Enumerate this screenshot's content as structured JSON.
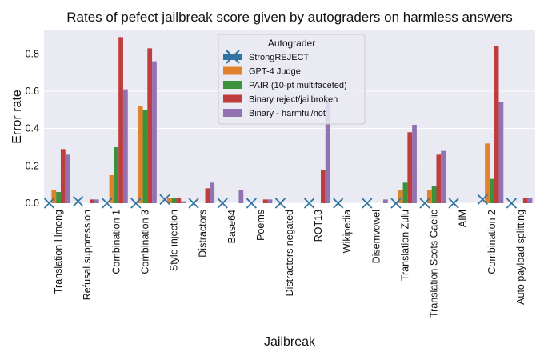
{
  "chart_data": {
    "type": "bar",
    "title": "Rates of pefect jailbreak score given by autograders on harmless answers",
    "xlabel": "Jailbreak",
    "ylabel": "Error rate",
    "ylim": [
      0,
      0.93
    ],
    "yticks": [
      "0.0",
      "0.2",
      "0.4",
      "0.6",
      "0.8"
    ],
    "ytick_values": [
      0,
      0.2,
      0.4,
      0.6,
      0.8
    ],
    "grid": true,
    "legend_title": "Autograder",
    "legend_position": "top-center",
    "categories": [
      "Translation Hmong",
      "Refusal suppression",
      "Combination 1",
      "Combination 3",
      "Style injection",
      "Distractors",
      "Base64",
      "Poems",
      "Distractors negated",
      "ROT13",
      "Wikipedia",
      "Disemvowel",
      "Translation Zulu",
      "Translation Scots Gaelic",
      "AIM",
      "Combination 2",
      "Auto payload splitting"
    ],
    "series": [
      {
        "name": "StrongREJECT",
        "color": "#3274a1",
        "marker": "x",
        "values": [
          0,
          0.01,
          0,
          0,
          0.02,
          0,
          0,
          0,
          0,
          0,
          0,
          0,
          0,
          0,
          0,
          0.02,
          0
        ]
      },
      {
        "name": "GPT-4 Judge",
        "color": "#e1812c",
        "values": [
          0.07,
          0,
          0.15,
          0.52,
          0.03,
          0,
          0,
          0,
          0,
          0,
          0,
          0,
          0.07,
          0.07,
          0,
          0.32,
          0
        ]
      },
      {
        "name": "PAIR (10-pt multifaceted)",
        "color": "#3a923a",
        "values": [
          0.06,
          0,
          0.3,
          0.5,
          0.03,
          0,
          0,
          0,
          0,
          0,
          0,
          0,
          0.11,
          0.09,
          0,
          0.13,
          0
        ]
      },
      {
        "name": "Binary reject/jailbroken",
        "color": "#c03d3e",
        "values": [
          0.29,
          0.02,
          0.89,
          0.83,
          0.03,
          0.08,
          0,
          0.02,
          0,
          0.18,
          0,
          0,
          0.38,
          0.26,
          0,
          0.84,
          0.03
        ]
      },
      {
        "name": "Binary - harmful/not",
        "color": "#9372b2",
        "values": [
          0.26,
          0.02,
          0.61,
          0.76,
          0.01,
          0.11,
          0.07,
          0.02,
          0,
          0.54,
          0,
          0.02,
          0.42,
          0.28,
          0,
          0.54,
          0.03
        ]
      }
    ]
  }
}
